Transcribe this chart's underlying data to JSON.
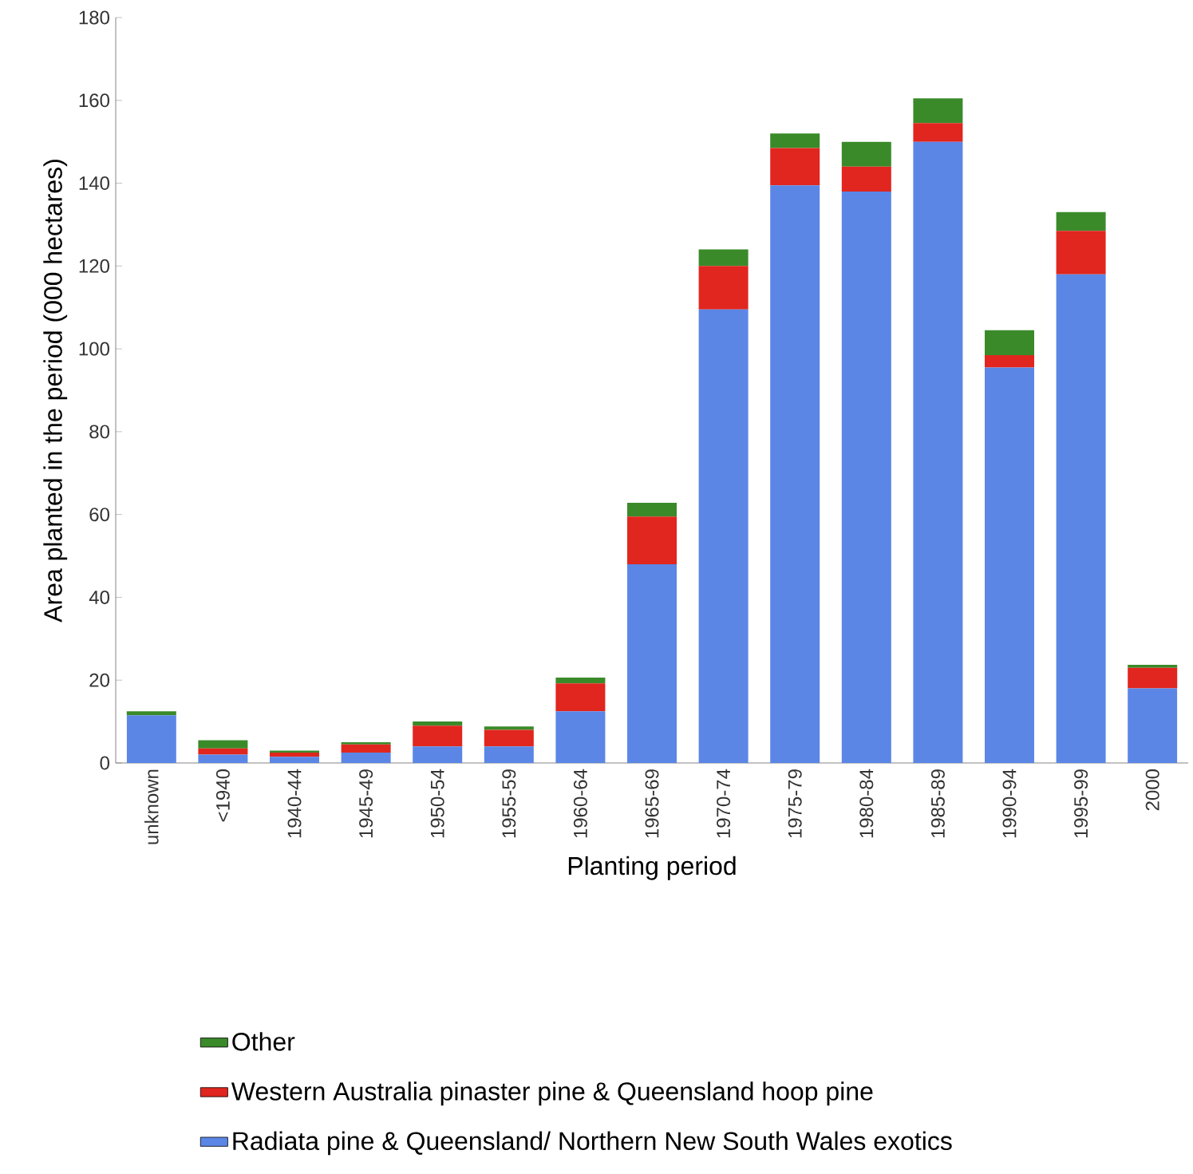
{
  "chart_data": {
    "type": "bar",
    "stacked": true,
    "xlabel": "Planting period",
    "ylabel": "Area planted in the period (000 hectares)",
    "categories": [
      "unknown",
      "<1940",
      "1940-44",
      "1945-49",
      "1950-54",
      "1955-59",
      "1960-64",
      "1965-69",
      "1970-74",
      "1975-79",
      "1980-84",
      "1985-89",
      "1990-94",
      "1995-99",
      "2000"
    ],
    "series": [
      {
        "name": "Radiata pine & Queensland/ Northern New South Wales exotics",
        "color": "#5b86e6",
        "values": [
          11.5,
          2,
          1.5,
          2.5,
          4,
          4,
          12.5,
          48,
          109.5,
          139.5,
          138,
          150,
          95.5,
          118,
          18
        ]
      },
      {
        "name": "Western Australia pinaster pine & Queensland hoop pine",
        "color": "#e0261e",
        "values": [
          0,
          1.5,
          1,
          2,
          5,
          4,
          6.7,
          11.5,
          10.5,
          9,
          6,
          4.5,
          3,
          10.5,
          5
        ]
      },
      {
        "name": "Other",
        "color": "#3a8a2a",
        "values": [
          1,
          2,
          0.5,
          0.5,
          1,
          0.8,
          1.4,
          3.3,
          4,
          3.5,
          6,
          6,
          6,
          4.5,
          0.7
        ]
      }
    ],
    "ylim": [
      0,
      180
    ],
    "yticks": [
      0,
      20,
      40,
      60,
      80,
      100,
      120,
      140,
      160,
      180
    ],
    "grid": false,
    "legend": "bottom"
  }
}
